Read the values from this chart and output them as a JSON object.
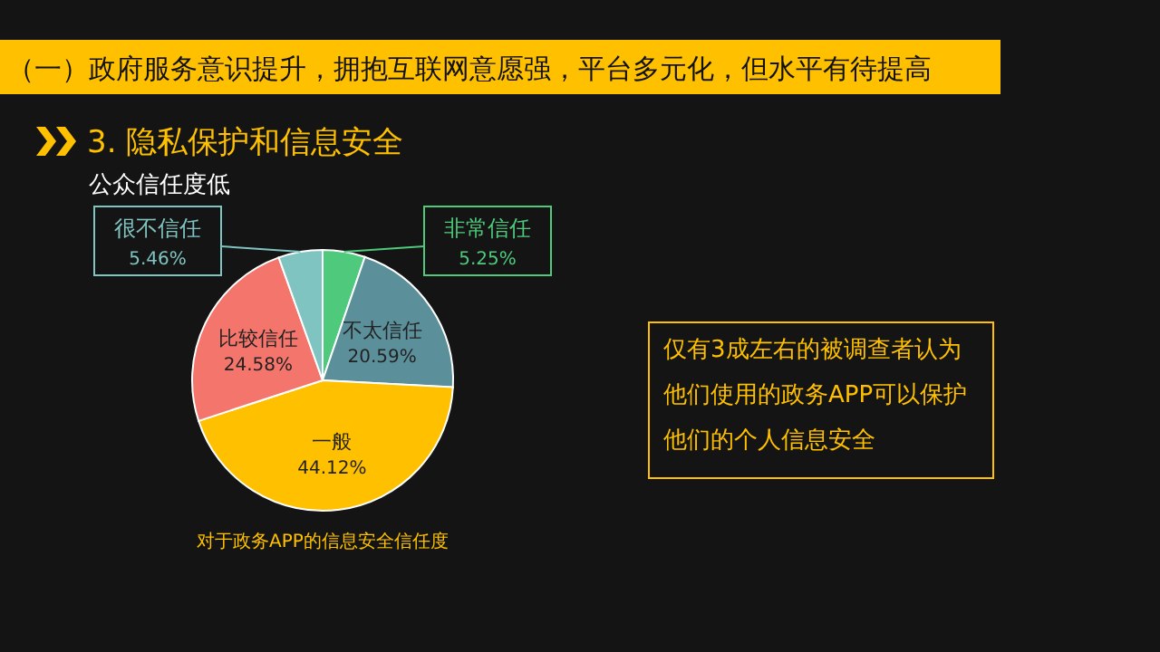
{
  "chart_data": {
    "type": "pie",
    "title": "（一）政府服务意识提升，拥抱互联网意愿强，平台多元化，但水平有待提高",
    "subtitle": "3. 隐私保护和信息安全",
    "annotations": [
      "公众信任度低",
      "对于政务APP的信息安全信任度",
      "仅有3成左右的被调查者认为他们使用的政务APP可以保护他们的个人信息安全"
    ],
    "categories": [
      "非常信任",
      "不太信任",
      "一般",
      "比较信任",
      "很不信任"
    ],
    "values": [
      5.25,
      20.59,
      44.12,
      24.58,
      5.46
    ],
    "colors": [
      "#4fc97c",
      "#5b8f99",
      "#ffc000",
      "#f4756b",
      "#80c4c2"
    ],
    "value_labels": [
      "5.25%",
      "20.59%",
      "44.12%",
      "24.58%",
      "5.46%"
    ]
  }
}
